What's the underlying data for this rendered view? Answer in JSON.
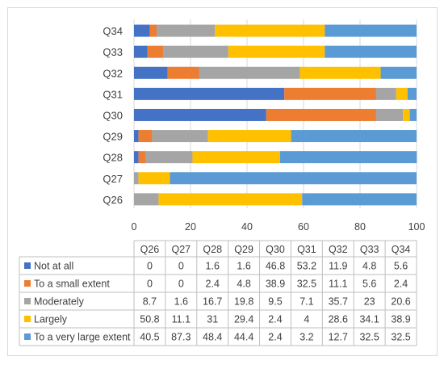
{
  "chart_data": {
    "type": "bar",
    "orientation": "horizontal",
    "stacked": true,
    "categories": [
      "Q26",
      "Q27",
      "Q28",
      "Q29",
      "Q30",
      "Q31",
      "Q32",
      "Q33",
      "Q34"
    ],
    "series": [
      {
        "name": "Not at all",
        "color": "#4472C4",
        "values": [
          0,
          0,
          1.6,
          1.6,
          46.8,
          53.2,
          11.9,
          4.8,
          5.6
        ]
      },
      {
        "name": "To a small extent",
        "color": "#ED7D31",
        "values": [
          0,
          0,
          2.4,
          4.8,
          38.9,
          32.5,
          11.1,
          5.6,
          2.4
        ]
      },
      {
        "name": "Moderately",
        "color": "#A5A5A5",
        "values": [
          8.7,
          1.6,
          16.7,
          19.8,
          9.5,
          7.1,
          35.7,
          23,
          20.6
        ]
      },
      {
        "name": "Largely",
        "color": "#FFC000",
        "values": [
          50.8,
          11.1,
          31,
          29.4,
          2.4,
          4,
          28.6,
          34.1,
          38.9
        ]
      },
      {
        "name": "To a very large extent",
        "color": "#5B9BD5",
        "values": [
          40.5,
          87.3,
          48.4,
          44.4,
          2.4,
          3.2,
          12.7,
          32.5,
          32.5
        ]
      }
    ],
    "xlim": [
      0,
      100
    ],
    "xticks": [
      0,
      20,
      40,
      60,
      80,
      100
    ],
    "grid": "vertical",
    "legend": "data-table",
    "title": "",
    "xlabel": "",
    "ylabel": ""
  }
}
